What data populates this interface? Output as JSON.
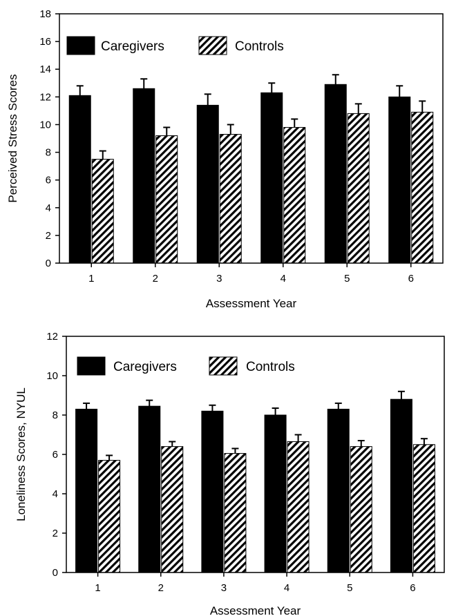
{
  "chart_data": [
    {
      "type": "bar",
      "title": "",
      "xlabel": "Assessment Year",
      "ylabel": "Perceived Stress Scores",
      "categories": [
        "1",
        "2",
        "3",
        "4",
        "5",
        "6"
      ],
      "ylim": [
        0,
        18
      ],
      "yticks": [
        0,
        2,
        4,
        6,
        8,
        10,
        12,
        14,
        16,
        18
      ],
      "grid": false,
      "legend_position": "top-left",
      "series": [
        {
          "name": "Caregivers",
          "fill": "solid",
          "color": "#000000",
          "values": [
            12.1,
            12.6,
            11.4,
            12.3,
            12.9,
            12.0
          ],
          "errors": [
            0.7,
            0.7,
            0.8,
            0.7,
            0.7,
            0.8
          ]
        },
        {
          "name": "Controls",
          "fill": "hatched",
          "color": "#000000",
          "values": [
            7.5,
            9.2,
            9.3,
            9.8,
            10.8,
            10.9
          ],
          "errors": [
            0.6,
            0.6,
            0.7,
            0.6,
            0.7,
            0.8
          ]
        }
      ]
    },
    {
      "type": "bar",
      "title": "",
      "xlabel": "Assessment Year",
      "ylabel": "Loneliness Scores, NYUL",
      "categories": [
        "1",
        "2",
        "3",
        "4",
        "5",
        "6"
      ],
      "ylim": [
        0,
        12
      ],
      "yticks": [
        0,
        2,
        4,
        6,
        8,
        10,
        12
      ],
      "grid": false,
      "legend_position": "top-left",
      "series": [
        {
          "name": "Caregivers",
          "fill": "solid",
          "color": "#000000",
          "values": [
            8.3,
            8.45,
            8.2,
            8.0,
            8.3,
            8.8
          ],
          "errors": [
            0.3,
            0.3,
            0.3,
            0.35,
            0.3,
            0.4
          ]
        },
        {
          "name": "Controls",
          "fill": "hatched",
          "color": "#000000",
          "values": [
            5.7,
            6.4,
            6.05,
            6.65,
            6.4,
            6.5
          ],
          "errors": [
            0.25,
            0.25,
            0.25,
            0.35,
            0.3,
            0.3
          ]
        }
      ]
    }
  ]
}
